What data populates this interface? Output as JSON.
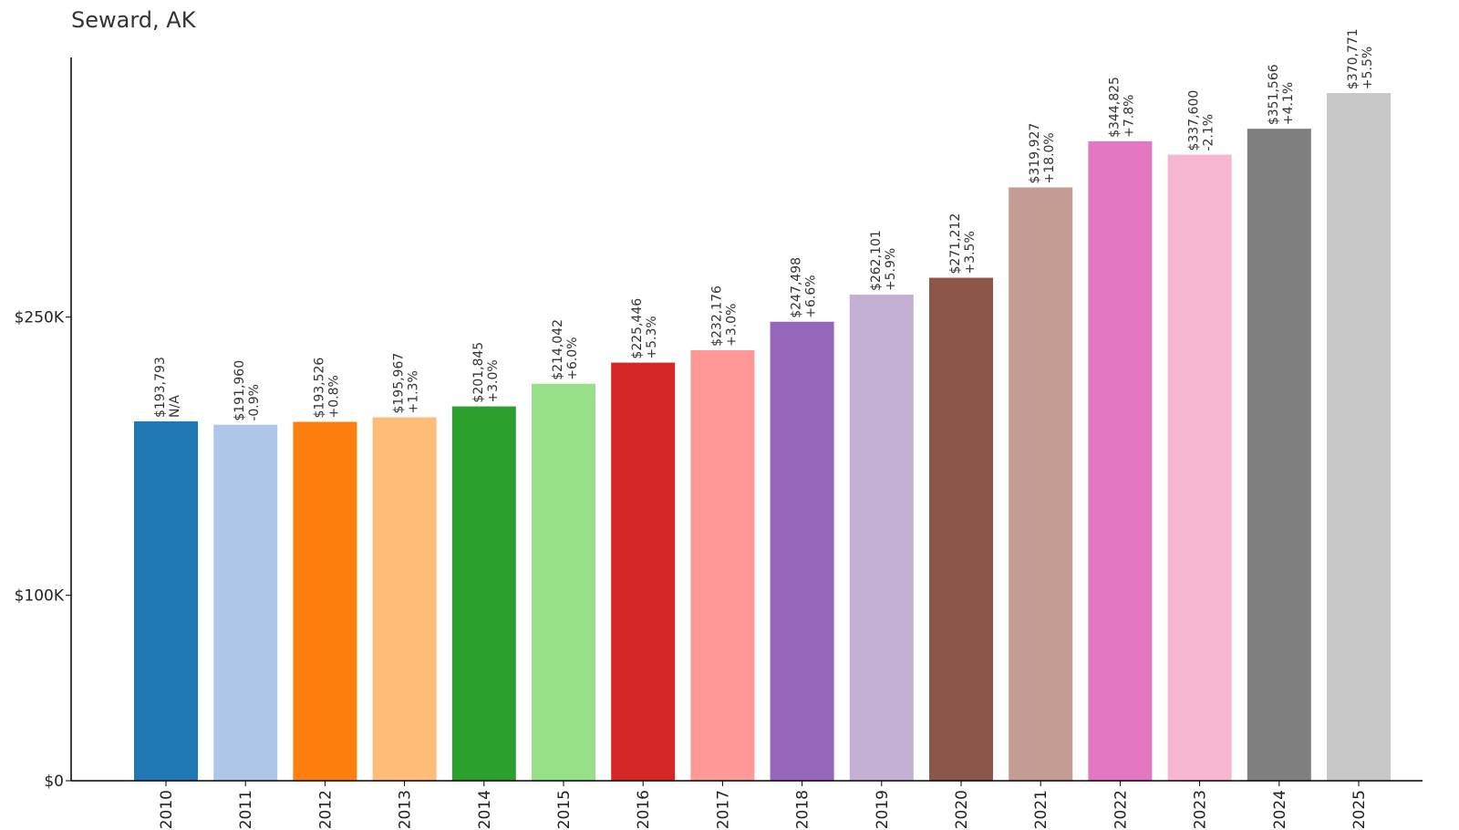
{
  "chart_data": {
    "type": "bar",
    "title": "Seward, AK",
    "xlabel": "",
    "ylabel": "",
    "ylim": [
      0,
      390000
    ],
    "yticks": [
      {
        "value": 0,
        "label": "$0"
      },
      {
        "value": 100000,
        "label": "$100K"
      },
      {
        "value": 250000,
        "label": "$250K"
      }
    ],
    "grid": false,
    "legend": "none",
    "categories": [
      "2010",
      "2011",
      "2012",
      "2013",
      "2014",
      "2015",
      "2016",
      "2017",
      "2018",
      "2019",
      "2020",
      "2021",
      "2022",
      "2023",
      "2024",
      "2025"
    ],
    "values": [
      193793,
      191960,
      193526,
      195967,
      201845,
      214042,
      225446,
      232176,
      247498,
      262101,
      271212,
      319927,
      344825,
      337600,
      351566,
      370771
    ],
    "value_labels": [
      "$193,793",
      "$191,960",
      "$193,526",
      "$195,967",
      "$201,845",
      "$214,042",
      "$225,446",
      "$232,176",
      "$247,498",
      "$262,101",
      "$271,212",
      "$319,927",
      "$344,825",
      "$337,600",
      "$351,566",
      "$370,771"
    ],
    "change_labels": [
      "N/A",
      "-0.9%",
      "+0.8%",
      "+1.3%",
      "+3.0%",
      "+6.0%",
      "+5.3%",
      "+3.0%",
      "+6.6%",
      "+5.9%",
      "+3.5%",
      "+18.0%",
      "+7.8%",
      "-2.1%",
      "+4.1%",
      "+5.5%"
    ],
    "colors": [
      "#1f77b4",
      "#aec7e8",
      "#ff7f0e",
      "#ffbb78",
      "#2ca02c",
      "#98df8a",
      "#d62728",
      "#ff9896",
      "#9467bd",
      "#c5b0d5",
      "#8c564b",
      "#c49c94",
      "#e377c2",
      "#f7b6d2",
      "#7f7f7f",
      "#c7c7c7"
    ]
  }
}
